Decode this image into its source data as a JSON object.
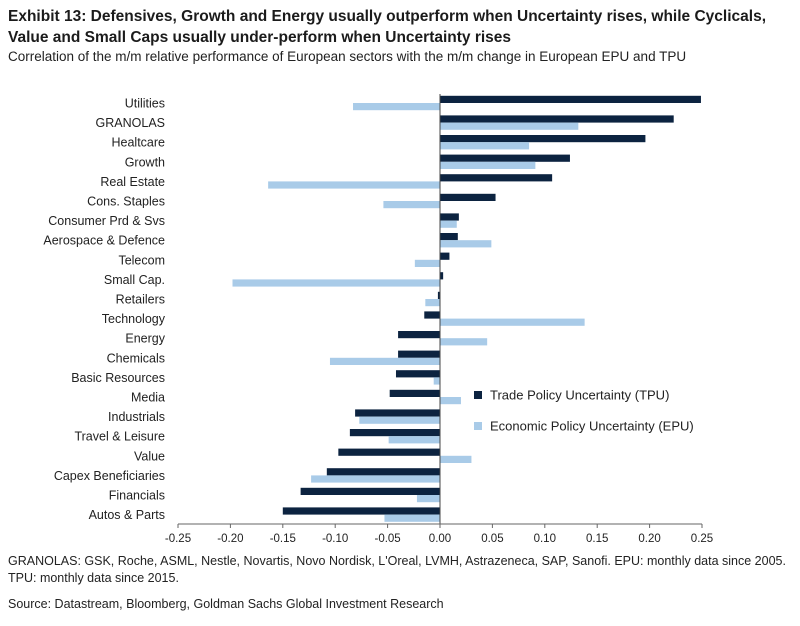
{
  "header": {
    "title": "Exhibit 13: Defensives, Growth and Energy usually outperform when Uncertainty rises, while Cyclicals, Value and Small Caps usually under-perform when Uncertainty rises",
    "subtitle": "Correlation of the m/m relative performance of European sectors with the m/m change in European EPU and TPU"
  },
  "footer": {
    "note": "GRANOLAS: GSK, Roche, ASML, Nestle, Novartis, Novo Nordisk, L'Oreal, LVMH, Astrazeneca, SAP, Sanofi. EPU: monthly data since 2005. TPU: monthly data since 2015.",
    "source": "Source: Datastream, Bloomberg, Goldman Sachs Global Investment Research"
  },
  "chart_data": {
    "type": "bar",
    "orientation": "horizontal",
    "title": "Exhibit 13: Defensives, Growth and Energy usually outperform when Uncertainty rises, while Cyclicals, Value and Small Caps usually under-perform when Uncertainty rises",
    "xlabel": "",
    "ylabel": "",
    "xlim": [
      -0.25,
      0.25
    ],
    "x_ticks": [
      "-0.25",
      "-0.20",
      "-0.15",
      "-0.10",
      "-0.05",
      "0.00",
      "0.05",
      "0.10",
      "0.15",
      "0.20",
      "0.25"
    ],
    "x_tick_values": [
      -0.25,
      -0.2,
      -0.15,
      -0.1,
      -0.05,
      0.0,
      0.05,
      0.1,
      0.15,
      0.2,
      0.25
    ],
    "grid": false,
    "legend_position": "right",
    "categories": [
      "Utilities",
      "GRANOLAS",
      "Healtcare",
      "Growth",
      "Real Estate",
      "Cons. Staples",
      "Consumer Prd & Svs",
      "Aerospace & Defence",
      "Telecom",
      "Small Cap.",
      "Retailers",
      "Technology",
      "Energy",
      "Chemicals",
      "Basic Resources",
      "Media",
      "Industrials",
      "Travel & Leisure",
      "Value",
      "Capex Beneficiaries",
      "Financials",
      "Autos & Parts"
    ],
    "series": [
      {
        "name": "Trade Policy Uncertainty (TPU)",
        "color": "#0c2340",
        "values": [
          0.249,
          0.223,
          0.196,
          0.124,
          0.107,
          0.053,
          0.018,
          0.017,
          0.009,
          0.003,
          -0.002,
          -0.015,
          -0.04,
          -0.04,
          -0.042,
          -0.048,
          -0.081,
          -0.086,
          -0.097,
          -0.108,
          -0.133,
          -0.15
        ]
      },
      {
        "name": "Economic Policy Uncertainty (EPU)",
        "color": "#a9cbe8",
        "values": [
          -0.083,
          0.132,
          0.085,
          0.091,
          -0.164,
          -0.054,
          0.016,
          0.049,
          -0.024,
          -0.198,
          -0.014,
          0.138,
          0.045,
          -0.105,
          -0.006,
          0.02,
          -0.077,
          -0.049,
          0.03,
          -0.123,
          -0.022,
          -0.053
        ]
      }
    ]
  }
}
